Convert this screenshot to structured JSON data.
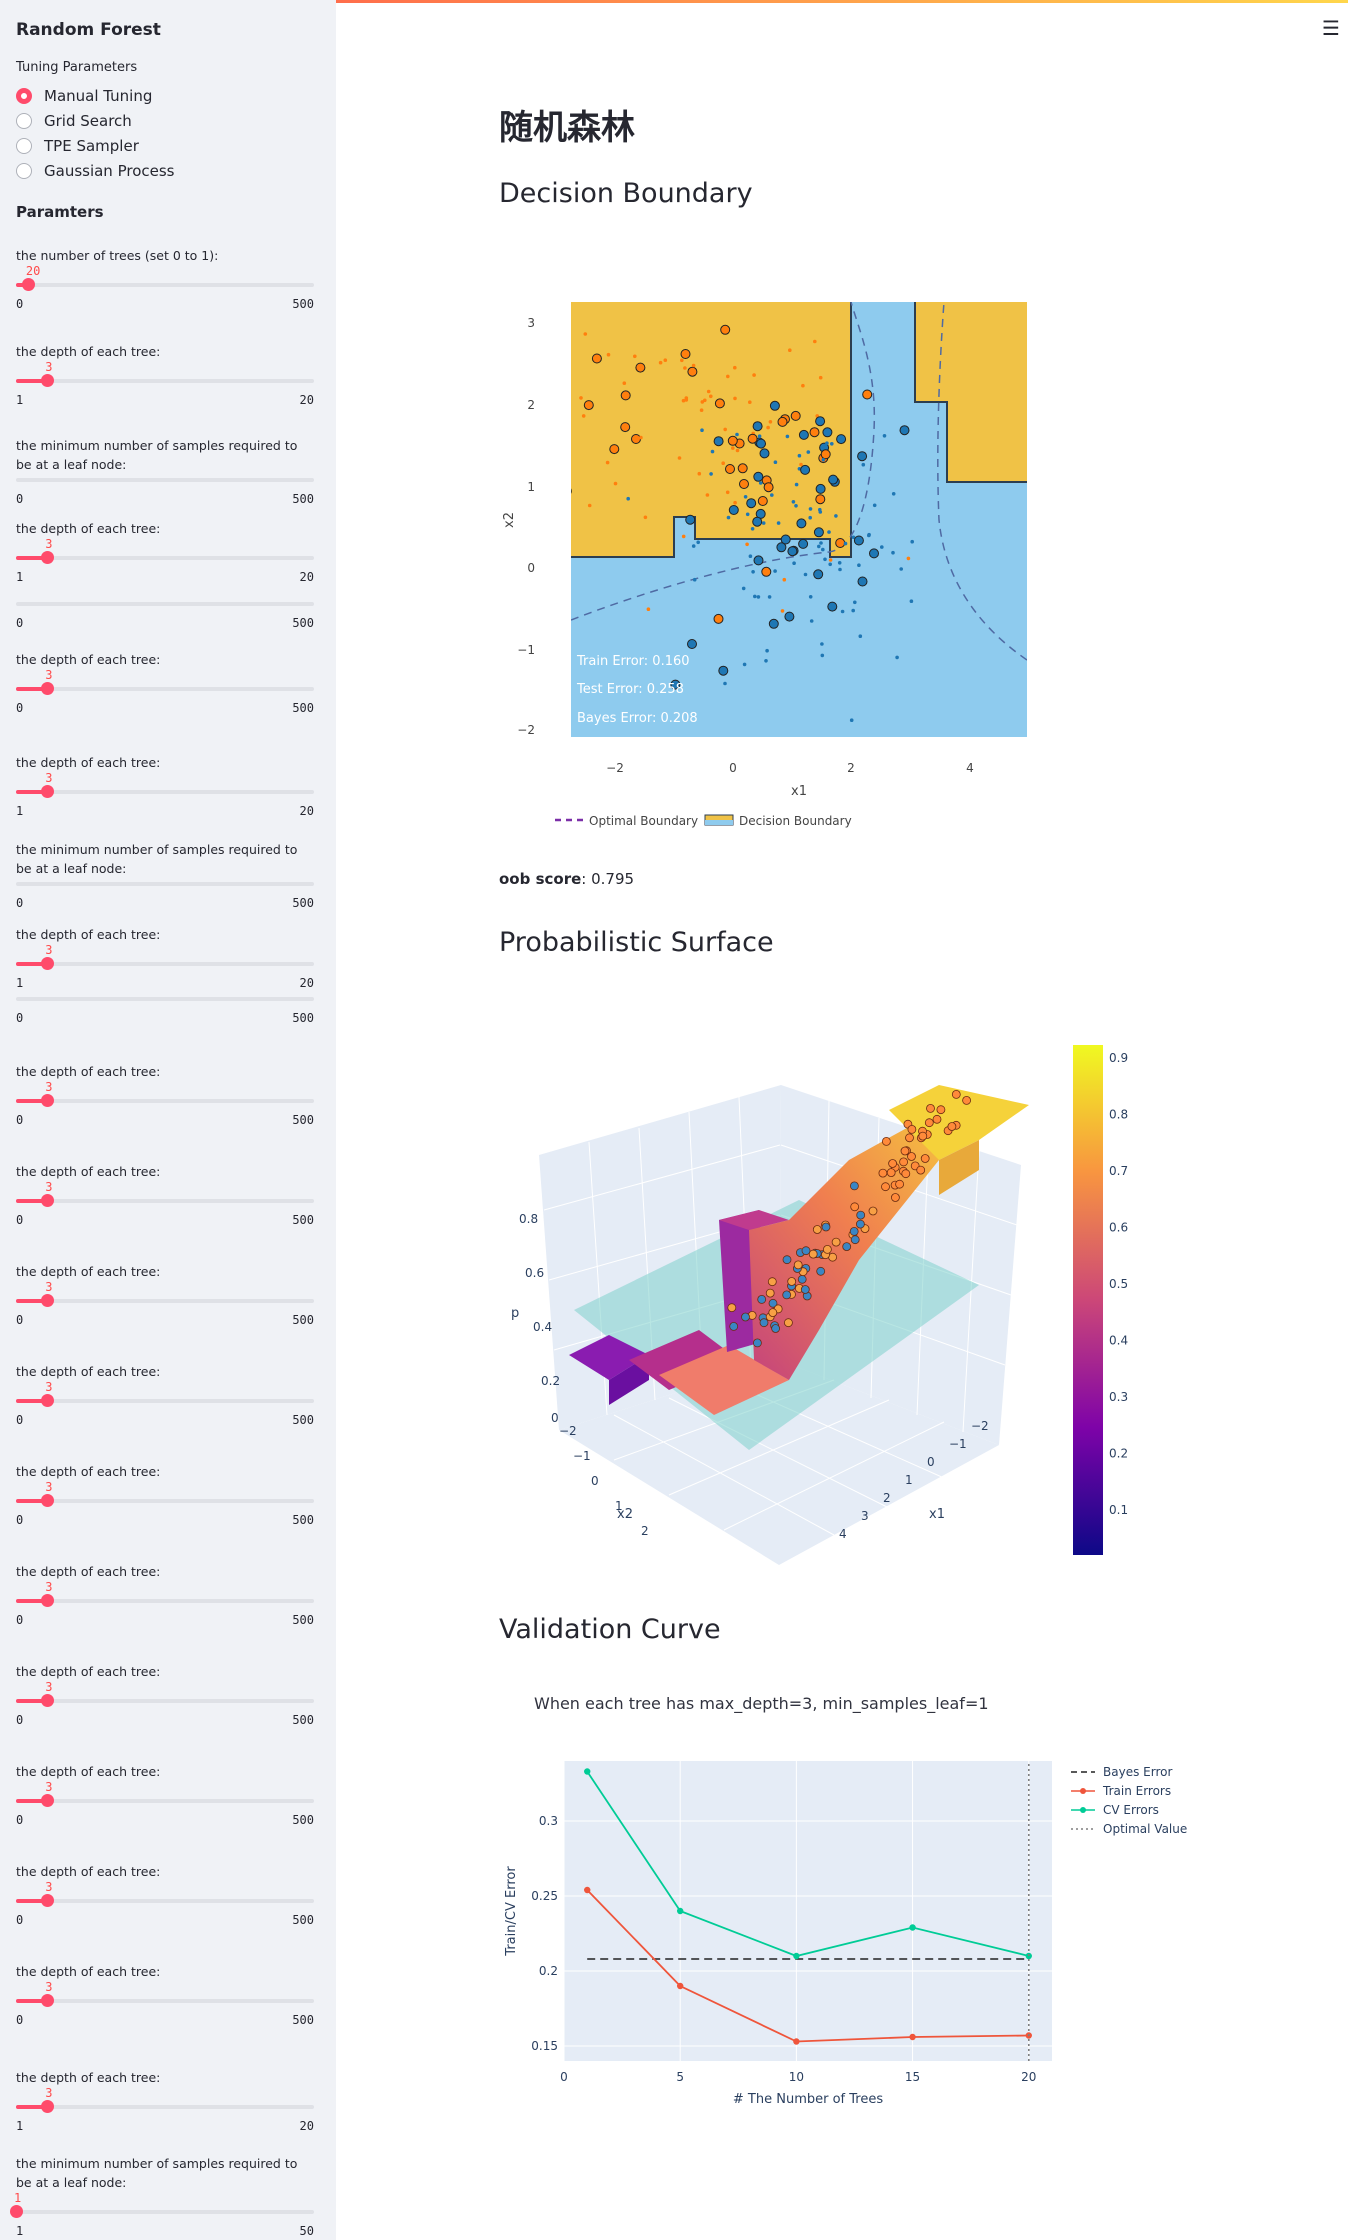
{
  "sidebar": {
    "title": "Random Forest",
    "tuning_label": "Tuning Parameters",
    "tuning_options": [
      {
        "label": "Manual Tuning",
        "selected": true
      },
      {
        "label": "Grid Search",
        "selected": false
      },
      {
        "label": "TPE Sampler",
        "selected": false
      },
      {
        "label": "Gaussian Process",
        "selected": false
      }
    ],
    "params_heading": "Paramters",
    "sliders": [
      {
        "label": "the number of trees (set 0 to 1):",
        "value": "20",
        "min": "0",
        "max": "500",
        "fraction": 0.04
      },
      {
        "label": "the depth of each tree:",
        "value": "3",
        "min": "1",
        "max": "20",
        "fraction": 0.105
      },
      {
        "label": "the minimum number of samples required to be at a leaf node:",
        "value": "",
        "min": "0",
        "max": "500",
        "fraction": 0
      },
      {
        "label": "the depth of each tree:",
        "value": "3",
        "min": "1",
        "max": "20",
        "fraction": 0.105
      },
      {
        "label": "",
        "value": "",
        "min": "0",
        "max": "500",
        "fraction": 0
      },
      {
        "label": "the depth of each tree:",
        "value": "3",
        "min": "0",
        "max": "500",
        "fraction": 0.105
      },
      {
        "label": "the depth of each tree:",
        "value": "3",
        "min": "1",
        "max": "20",
        "fraction": 0.105
      },
      {
        "label": "the minimum number of samples required to be at a leaf node:",
        "value": "",
        "min": "0",
        "max": "500",
        "fraction": 0
      },
      {
        "label": "the depth of each tree:",
        "value": "3",
        "min": "1",
        "max": "20",
        "fraction": 0.105
      },
      {
        "label": "",
        "value": "",
        "min": "0",
        "max": "500",
        "fraction": 0
      },
      {
        "label": "the depth of each tree:",
        "value": "3",
        "min": "0",
        "max": "500",
        "fraction": 0.105
      },
      {
        "label": "the depth of each tree:",
        "value": "3",
        "min": "0",
        "max": "500",
        "fraction": 0.105
      },
      {
        "label": "the depth of each tree:",
        "value": "3",
        "min": "0",
        "max": "500",
        "fraction": 0.105
      },
      {
        "label": "the depth of each tree:",
        "value": "3",
        "min": "0",
        "max": "500",
        "fraction": 0.105
      },
      {
        "label": "the depth of each tree:",
        "value": "3",
        "min": "0",
        "max": "500",
        "fraction": 0.105
      },
      {
        "label": "the depth of each tree:",
        "value": "3",
        "min": "0",
        "max": "500",
        "fraction": 0.105
      },
      {
        "label": "the depth of each tree:",
        "value": "3",
        "min": "0",
        "max": "500",
        "fraction": 0.105
      },
      {
        "label": "the depth of each tree:",
        "value": "3",
        "min": "0",
        "max": "500",
        "fraction": 0.105
      },
      {
        "label": "the depth of each tree:",
        "value": "3",
        "min": "0",
        "max": "500",
        "fraction": 0.105
      },
      {
        "label": "the depth of each tree:",
        "value": "3",
        "min": "0",
        "max": "500",
        "fraction": 0.105
      },
      {
        "label": "the depth of each tree:",
        "value": "3",
        "min": "1",
        "max": "20",
        "fraction": 0.105
      },
      {
        "label": "the minimum number of samples required to be at a leaf node:",
        "value": "1",
        "min": "1",
        "max": "50",
        "fraction": 0
      }
    ]
  },
  "main": {
    "title": "随机森林",
    "sections": {
      "decision_boundary": "Decision Boundary",
      "probabilistic_surface": "Probabilistic Surface",
      "validation_curve": "Validation Curve"
    },
    "oob_label": "oob score",
    "oob_value": ": 0.795",
    "validation_note": "When each tree has max_depth=3, min_samples_leaf=1"
  },
  "chart_data": [
    {
      "type": "scatter",
      "title": "Decision Boundary",
      "xlabel": "x1",
      "ylabel": "x2",
      "xlim": [
        -3,
        5
      ],
      "ylim": [
        -2.1,
        3.3
      ],
      "xticks": [
        "−2",
        "0",
        "2",
        "4"
      ],
      "yticks": [
        "3",
        "2",
        "1",
        "0",
        "−1",
        "−2"
      ],
      "annotations": [
        "Train Error: 0.160",
        "Test Error: 0.258",
        "Bayes Error: 0.208"
      ],
      "legend": [
        "Optimal Boundary",
        "Decision Boundary"
      ],
      "colors": {
        "class0_region": "#8ecbee",
        "class1_region": "#f0c246",
        "class0_point": "#1f77b4",
        "class1_point": "#ff7f0e"
      }
    },
    {
      "type": "surface",
      "title": "Probabilistic Surface",
      "xlabel": "x1",
      "ylabel": "x2",
      "zlabel": "p",
      "colorbar_ticks": [
        "0.9",
        "0.8",
        "0.7",
        "0.6",
        "0.5",
        "0.4",
        "0.3",
        "0.2",
        "0.1"
      ],
      "z_ticks": [
        "0.8",
        "0.6",
        "0.4",
        "0.2",
        "0"
      ],
      "x1_ticks": [
        "−2",
        "−1",
        "0",
        "1",
        "2",
        "3",
        "4"
      ],
      "x2_ticks": [
        "−2",
        "−1",
        "0",
        "1",
        "2"
      ]
    },
    {
      "type": "line",
      "title": "Validation Curve",
      "xlabel": "# The Number of Trees",
      "ylabel": "Train/CV Error",
      "xlim": [
        0,
        21
      ],
      "ylim": [
        0.14,
        0.34
      ],
      "xticks": [
        0,
        5,
        10,
        15,
        20
      ],
      "yticks": [
        0.15,
        0.2,
        0.25,
        0.3
      ],
      "series": [
        {
          "name": "Bayes Error",
          "x": [
            1,
            20
          ],
          "values": [
            0.208,
            0.208
          ],
          "color": "#222222",
          "dash": "dash"
        },
        {
          "name": "Train Errors",
          "x": [
            1,
            5,
            10,
            15,
            20
          ],
          "values": [
            0.254,
            0.19,
            0.153,
            0.156,
            0.157
          ],
          "color": "#ef553b"
        },
        {
          "name": "CV Errors",
          "x": [
            1,
            5,
            10,
            15,
            20
          ],
          "values": [
            0.333,
            0.24,
            0.21,
            0.229,
            0.21
          ],
          "color": "#00cc96"
        },
        {
          "name": "Optimal Value",
          "x": [
            20,
            20
          ],
          "values": [
            0.14,
            0.34
          ],
          "color": "#7f7f7f",
          "dash": "dot"
        }
      ]
    }
  ]
}
